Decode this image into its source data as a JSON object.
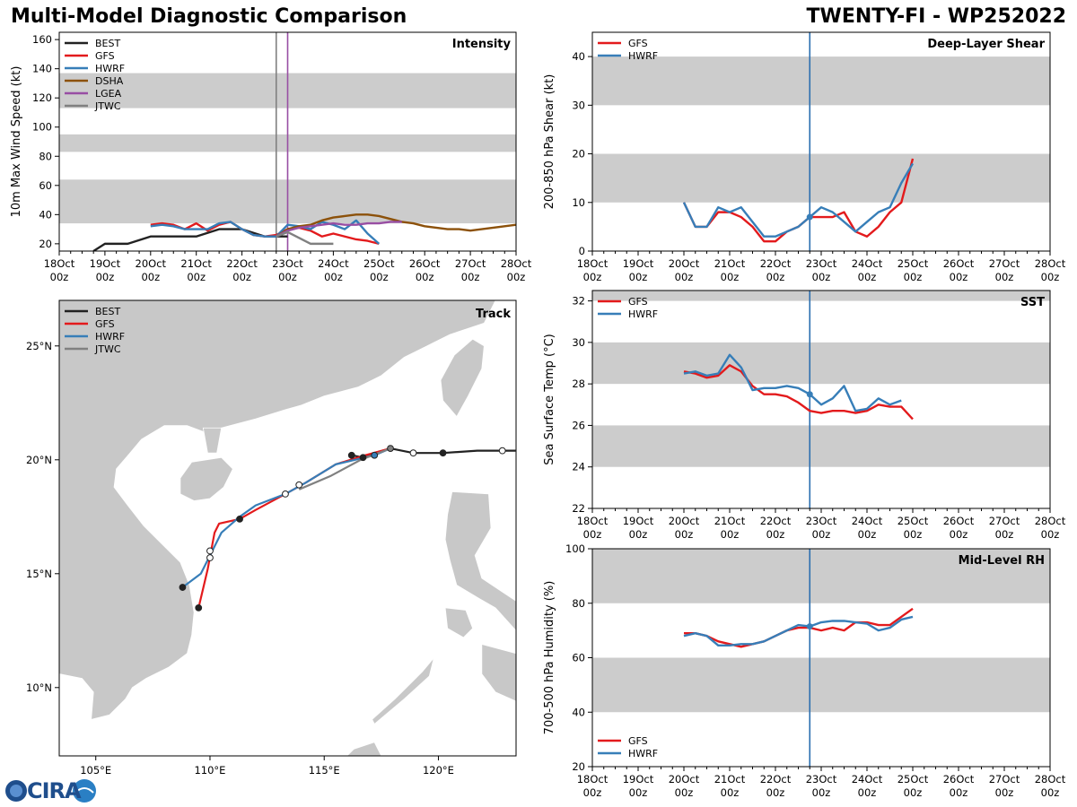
{
  "header": {
    "title": "Multi-Model Diagnostic Comparison",
    "storm": "TWENTY-FI - WP252022"
  },
  "colors": {
    "BEST": "#222222",
    "GFS": "#e31a1c",
    "HWRF": "#377eb8",
    "DSHA": "#8c510a",
    "LGEA": "#984ea3",
    "JTWC": "#808080",
    "band": "#cccccc",
    "land": "#c8c8c8",
    "vline": "#2c6fb0"
  },
  "time_ticks": [
    "18Oct\n00z",
    "19Oct\n00z",
    "20Oct\n00z",
    "21Oct\n00z",
    "22Oct\n00z",
    "23Oct\n00z",
    "24Oct\n00z",
    "25Oct\n00z",
    "26Oct\n00z",
    "27Oct\n00z",
    "28Oct\n00z"
  ],
  "chart_data": [
    {
      "id": "intensity",
      "type": "line",
      "title": "Intensity",
      "ylabel": "10m Max Wind Speed (kt)",
      "xlabel": "",
      "xlim": [
        0,
        240
      ],
      "ylim": [
        15,
        165
      ],
      "yticks": [
        20,
        40,
        60,
        80,
        100,
        120,
        140,
        160
      ],
      "bands": [
        [
          34,
          64
        ],
        [
          83,
          95
        ],
        [
          113,
          137
        ]
      ],
      "legend": [
        "BEST",
        "GFS",
        "HWRF",
        "DSHA",
        "LGEA",
        "JTWC"
      ],
      "vlines": [
        {
          "x": 114,
          "color": "#808080"
        },
        {
          "x": 120,
          "color": "#984ea3"
        }
      ],
      "series": [
        {
          "name": "BEST",
          "x": [
            18,
            24,
            36,
            48,
            60,
            72,
            84,
            96,
            108,
            114,
            120
          ],
          "y": [
            15,
            20,
            20,
            25,
            25,
            25,
            30,
            30,
            25,
            25,
            25
          ]
        },
        {
          "name": "GFS",
          "x": [
            48,
            54,
            60,
            66,
            72,
            78,
            84,
            90,
            96,
            102,
            108,
            114,
            120,
            126,
            132,
            138,
            144,
            150,
            156,
            162,
            168
          ],
          "y": [
            33,
            34,
            33,
            30,
            34,
            29,
            33,
            35,
            30,
            26,
            25,
            26,
            30,
            31,
            29,
            25,
            27,
            25,
            23,
            22,
            20
          ]
        },
        {
          "name": "HWRF",
          "x": [
            48,
            54,
            60,
            66,
            72,
            78,
            84,
            90,
            96,
            102,
            108,
            114,
            120,
            126,
            132,
            138,
            144,
            150,
            156,
            162,
            168
          ],
          "y": [
            32,
            33,
            32,
            30,
            30,
            30,
            34,
            35,
            30,
            26,
            25,
            25,
            33,
            32,
            30,
            35,
            33,
            30,
            36,
            27,
            20
          ]
        },
        {
          "name": "DSHA",
          "x": [
            114,
            120,
            126,
            132,
            138,
            144,
            150,
            156,
            162,
            168,
            174,
            180,
            186,
            192,
            198,
            204,
            210,
            216,
            222,
            228,
            234,
            240
          ],
          "y": [
            25,
            30,
            32,
            33,
            36,
            38,
            39,
            40,
            40,
            39,
            37,
            35,
            34,
            32,
            31,
            30,
            30,
            29,
            30,
            31,
            32,
            33
          ]
        },
        {
          "name": "LGEA",
          "x": [
            114,
            120,
            126,
            132,
            138,
            144,
            150,
            156,
            162,
            168,
            174,
            180
          ],
          "y": [
            25,
            29,
            31,
            32,
            33,
            34,
            33,
            33,
            34,
            34,
            35,
            35
          ]
        },
        {
          "name": "JTWC",
          "x": [
            114,
            120,
            126,
            132,
            138,
            144
          ],
          "y": [
            25,
            28,
            24,
            20,
            20,
            20
          ]
        }
      ]
    },
    {
      "id": "shear",
      "type": "line",
      "title": "Deep-Layer Shear",
      "ylabel": "200-850 hPa Shear (kt)",
      "xlabel": "",
      "xlim": [
        0,
        240
      ],
      "ylim": [
        0,
        45
      ],
      "yticks": [
        0,
        10,
        20,
        30,
        40
      ],
      "bands": [
        [
          10,
          20
        ],
        [
          30,
          40
        ]
      ],
      "legend": [
        "GFS",
        "HWRF"
      ],
      "vlines": [
        {
          "x": 114,
          "color": "#2c6fb0"
        }
      ],
      "series": [
        {
          "name": "GFS",
          "x": [
            48,
            54,
            60,
            66,
            72,
            78,
            84,
            90,
            96,
            102,
            108,
            114,
            120,
            126,
            132,
            138,
            144,
            150,
            156,
            162,
            168
          ],
          "y": [
            10,
            5,
            5,
            8,
            8,
            7,
            5,
            2,
            2,
            4,
            5,
            7,
            7,
            7,
            8,
            4,
            3,
            5,
            8,
            10,
            19
          ]
        },
        {
          "name": "HWRF",
          "x": [
            48,
            54,
            60,
            66,
            72,
            78,
            84,
            90,
            96,
            102,
            108,
            114,
            120,
            126,
            132,
            138,
            144,
            150,
            156,
            162,
            168
          ],
          "y": [
            10,
            5,
            5,
            9,
            8,
            9,
            6,
            3,
            3,
            4,
            5,
            7,
            9,
            8,
            6,
            4,
            6,
            8,
            9,
            14,
            18
          ]
        }
      ]
    },
    {
      "id": "sst",
      "type": "line",
      "title": "SST",
      "ylabel": "Sea Surface Temp (°C)",
      "xlabel": "",
      "xlim": [
        0,
        240
      ],
      "ylim": [
        22,
        32.5
      ],
      "yticks": [
        22,
        24,
        26,
        28,
        30,
        32
      ],
      "bands": [
        [
          24,
          26
        ],
        [
          28,
          30
        ],
        [
          32,
          33
        ]
      ],
      "legend": [
        "GFS",
        "HWRF"
      ],
      "vlines": [
        {
          "x": 114,
          "color": "#2c6fb0"
        }
      ],
      "series": [
        {
          "name": "GFS",
          "x": [
            48,
            54,
            60,
            66,
            72,
            78,
            84,
            90,
            96,
            102,
            108,
            114,
            120,
            126,
            132,
            138,
            144,
            150,
            156,
            162,
            168
          ],
          "y": [
            28.6,
            28.5,
            28.3,
            28.4,
            28.9,
            28.6,
            27.9,
            27.5,
            27.5,
            27.4,
            27.1,
            26.7,
            26.6,
            26.7,
            26.7,
            26.6,
            26.7,
            27.0,
            26.9,
            26.9,
            26.3
          ]
        },
        {
          "name": "HWRF",
          "x": [
            48,
            54,
            60,
            66,
            72,
            78,
            84,
            90,
            96,
            102,
            108,
            114,
            120,
            126,
            132,
            138,
            144,
            150,
            156,
            162
          ],
          "y": [
            28.5,
            28.6,
            28.4,
            28.5,
            29.4,
            28.8,
            27.7,
            27.8,
            27.8,
            27.9,
            27.8,
            27.5,
            27.0,
            27.3,
            27.9,
            26.7,
            26.8,
            27.3,
            27.0,
            27.2
          ]
        }
      ]
    },
    {
      "id": "rh",
      "type": "line",
      "title": "Mid-Level RH",
      "ylabel": "700-500 hPa Humidity (%)",
      "xlabel": "",
      "xlim": [
        0,
        240
      ],
      "ylim": [
        20,
        100
      ],
      "yticks": [
        20,
        40,
        60,
        80,
        100
      ],
      "bands": [
        [
          40,
          60
        ],
        [
          80,
          100
        ]
      ],
      "legend": [
        "GFS",
        "HWRF"
      ],
      "vlines": [
        {
          "x": 114,
          "color": "#2c6fb0"
        }
      ],
      "series": [
        {
          "name": "GFS",
          "x": [
            48,
            54,
            60,
            66,
            72,
            78,
            84,
            90,
            96,
            102,
            108,
            114,
            120,
            126,
            132,
            138,
            144,
            150,
            156,
            162,
            168
          ],
          "y": [
            69,
            69,
            68,
            66,
            65,
            64,
            65,
            66,
            68,
            70,
            71,
            71,
            70,
            71,
            70,
            73,
            73,
            72,
            72,
            75,
            78
          ]
        },
        {
          "name": "HWRF",
          "x": [
            48,
            54,
            60,
            66,
            72,
            78,
            84,
            90,
            96,
            102,
            108,
            114,
            120,
            126,
            132,
            138,
            144,
            150,
            156,
            162,
            168
          ],
          "y": [
            68,
            69,
            68,
            64.5,
            64.5,
            65,
            65,
            66,
            68,
            70,
            72,
            71.5,
            73,
            73.5,
            73.5,
            73,
            72.5,
            70,
            71,
            74,
            75
          ]
        }
      ]
    },
    {
      "id": "track",
      "type": "map",
      "title": "Track",
      "xticks": [
        105,
        110,
        115,
        120
      ],
      "xticklabels": [
        "105°E",
        "110°E",
        "115°E",
        "120°E"
      ],
      "yticks": [
        10,
        15,
        20,
        25
      ],
      "yticklabels": [
        "10°N",
        "15°N",
        "20°N",
        "25°N"
      ],
      "xlim": [
        103.4,
        123.4
      ],
      "ylim": [
        7,
        27
      ],
      "legend": [
        "BEST",
        "GFS",
        "HWRF",
        "JTWC"
      ],
      "series": [
        {
          "name": "BEST",
          "lon": [
            123.4,
            122.8,
            121.7,
            120.2,
            118.9,
            117.9,
            117.2,
            116.7,
            116.2
          ],
          "lat": [
            20.4,
            20.4,
            20.4,
            20.3,
            20.3,
            20.5,
            20.3,
            20.1,
            20.2
          ]
        },
        {
          "name": "GFS",
          "lon": [
            117.9,
            116.8,
            115.5,
            114.2,
            113.3,
            112.0,
            111.3,
            110.4,
            110.2,
            109.9,
            109.5
          ],
          "lat": [
            20.5,
            20.2,
            19.8,
            19.0,
            18.5,
            17.8,
            17.4,
            17.2,
            16.8,
            15.2,
            13.5
          ]
        },
        {
          "name": "HWRF",
          "lon": [
            117.9,
            117.2,
            115.5,
            114.2,
            113.3,
            112.0,
            111.3,
            110.5,
            109.6,
            108.8
          ],
          "lat": [
            20.5,
            20.2,
            19.8,
            19.0,
            18.5,
            18.0,
            17.5,
            16.8,
            15.0,
            14.4
          ]
        },
        {
          "name": "JTWC",
          "lon": [
            117.9,
            116.6,
            115.3,
            113.9
          ],
          "lat": [
            20.5,
            20.0,
            19.3,
            18.7
          ]
        }
      ],
      "markers": [
        {
          "lon": 122.8,
          "lat": 20.4,
          "fill": "#ffffff"
        },
        {
          "lon": 120.2,
          "lat": 20.3,
          "fill": "#222222"
        },
        {
          "lon": 118.9,
          "lat": 20.3,
          "fill": "#ffffff"
        },
        {
          "lon": 117.9,
          "lat": 20.5,
          "fill": "#808080"
        },
        {
          "lon": 116.7,
          "lat": 20.1,
          "fill": "#222222"
        },
        {
          "lon": 116.2,
          "lat": 20.2,
          "fill": "#222222"
        },
        {
          "lon": 117.2,
          "lat": 20.2,
          "fill": "#377eb8"
        },
        {
          "lon": 113.9,
          "lat": 18.9,
          "fill": "#ffffff"
        },
        {
          "lon": 113.3,
          "lat": 18.5,
          "fill": "#ffffff"
        },
        {
          "lon": 111.3,
          "lat": 17.4,
          "fill": "#222222"
        },
        {
          "lon": 110.0,
          "lat": 16.0,
          "fill": "#ffffff"
        },
        {
          "lon": 110.0,
          "lat": 15.7,
          "fill": "#ffffff"
        },
        {
          "lon": 108.8,
          "lat": 14.4,
          "fill": "#222222"
        },
        {
          "lon": 109.5,
          "lat": 13.5,
          "fill": "#222222"
        }
      ]
    }
  ],
  "logo": {
    "text": "CIRA"
  }
}
